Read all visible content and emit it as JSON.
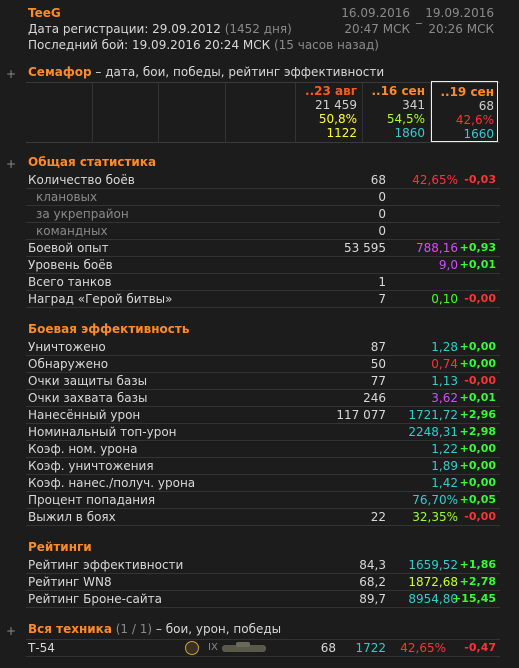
{
  "header": {
    "name": "TeeG",
    "registration": "Дата регистрации: 29.09.2012",
    "registration_days": "(1452 дня)",
    "last_battle": "Последний бой: 19.09.2016 20:24 МСК",
    "last_battle_ago": "(15 часов назад)",
    "date_from": "16.09.2016",
    "time_from": "20:47 МСК",
    "separator": "_",
    "date_to": "19.09.2016",
    "time_to": "20:26 МСК"
  },
  "semafor": {
    "toggle": "+",
    "title": "Семафор",
    "description": "– дата, бои, победы, рейтинг эффективности",
    "columns": [
      {
        "date": "..23 авг",
        "battles": "21 459",
        "wins": "50,8%",
        "rating": "1122",
        "date_color": "#ff5a1a",
        "wins_color": "#ffff33",
        "rating_color": "#ffff33"
      },
      {
        "date": "..16 сен",
        "battles": "341",
        "wins": "54,5%",
        "rating": "1860",
        "date_color": "#ff8a2a",
        "wins_color": "#a6ff33",
        "rating_color": "#33cccc"
      },
      {
        "date": "..19 сен",
        "battles": "68",
        "wins": "42,6%",
        "rating": "1660",
        "date_color": "#ff8a2a",
        "wins_color": "#ff3333",
        "rating_color": "#33cccc",
        "highlight": true
      }
    ]
  },
  "sections": [
    {
      "toggle": "+",
      "title": "Общая статистика",
      "rows": [
        {
          "label": "Количество боёв",
          "value": "68",
          "avg": "42,65%",
          "delta": "-0,03",
          "avg_color": "#ff3333",
          "delta_color": "#ff3333"
        },
        {
          "label": "клановых",
          "value": "0",
          "sub": true
        },
        {
          "label": "за укрепрайон",
          "value": "0",
          "sub": true
        },
        {
          "label": "командных",
          "value": "0",
          "sub": true
        },
        {
          "label": "Боевой опыт",
          "value": "53 595",
          "avg": "788,16",
          "delta": "+0,93",
          "avg_color": "#d24dff",
          "delta_color": "#33ff33"
        },
        {
          "label": "Уровень боёв",
          "avg": "9,0",
          "delta": "+0,01",
          "avg_color": "#d24dff",
          "delta_color": "#33ff33"
        },
        {
          "label": "Всего танков",
          "value": "1"
        },
        {
          "label": "Наград «Герой битвы»",
          "value": "7",
          "avg": "0,10",
          "delta": "-0,00",
          "avg_color": "#44ff22",
          "delta_color": "#ff3333"
        }
      ]
    },
    {
      "title": "Боевая эффективность",
      "rows": [
        {
          "label": "Уничтожено",
          "value": "87",
          "avg": "1,28",
          "delta": "+0,00",
          "avg_color": "#33cccc",
          "delta_color": "#33ff33"
        },
        {
          "label": "Обнаружено",
          "value": "50",
          "avg": "0,74",
          "delta": "+0,00",
          "avg_color": "#ff3333",
          "delta_color": "#33ff33"
        },
        {
          "label": "Очки защиты базы",
          "value": "77",
          "avg": "1,13",
          "delta": "-0,00",
          "avg_color": "#33cccc",
          "delta_color": "#ff3333"
        },
        {
          "label": "Очки захвата базы",
          "value": "246",
          "avg": "3,62",
          "delta": "+0,01",
          "avg_color": "#d24dff",
          "delta_color": "#33ff33"
        },
        {
          "label": "Нанесённый урон",
          "value": "117 077",
          "avg": "1721,72",
          "delta": "+2,96",
          "avg_color": "#33cccc",
          "delta_color": "#33ff33"
        },
        {
          "label": "Номинальный топ-урон",
          "avg": "2248,31",
          "delta": "+2,98",
          "avg_color": "#33cccc",
          "delta_color": "#33ff33"
        },
        {
          "label": "Коэф. ном. урона",
          "avg": "1,22",
          "delta": "+0,00",
          "avg_color": "#33cccc",
          "delta_color": "#33ff33"
        },
        {
          "label": "Коэф. уничтожения",
          "avg": "1,89",
          "delta": "+0,00",
          "avg_color": "#33cccc",
          "delta_color": "#33ff33"
        },
        {
          "label": "Коэф. нанес./получ. урона",
          "avg": "1,42",
          "delta": "+0,00",
          "avg_color": "#33cccc",
          "delta_color": "#33ff33"
        },
        {
          "label": "Процент попадания",
          "avg": "76,70%",
          "delta": "+0,05",
          "avg_color": "#33cccc",
          "delta_color": "#33ff33"
        },
        {
          "label": "Выжил в боях",
          "value": "22",
          "avg": "32,35%",
          "delta": "-0,00",
          "avg_color": "#99ff33",
          "delta_color": "#ff3333"
        }
      ]
    },
    {
      "title": "Рейтинги",
      "rows": [
        {
          "label": "Рейтинг эффективности",
          "value": "84,3",
          "avg": "1659,52",
          "delta": "+1,86",
          "avg_color": "#33cccc",
          "delta_color": "#33ff33"
        },
        {
          "label": "Рейтинг WN8",
          "value": "68,2",
          "avg": "1872,68",
          "delta": "+2,78",
          "avg_color": "#ccff33",
          "delta_color": "#33ff33"
        },
        {
          "label": "Рейтинг Броне-сайта",
          "value": "89,7",
          "avg": "8954,80",
          "delta": "+15,45",
          "avg_color": "#33cccc",
          "delta_color": "#33ff33"
        }
      ]
    }
  ],
  "vehicles": {
    "toggle": "+",
    "title": "Вся техника",
    "count": "(1 / 1)",
    "description": "– бои, урон, победы",
    "rows": [
      {
        "name": "Т-54",
        "tier": "IX",
        "battles": "68",
        "damage": "1722",
        "winrate": "42,65%",
        "delta": "-0,47",
        "damage_color": "#33cccc",
        "winrate_color": "#ff3333",
        "delta_color": "#ff3333"
      }
    ]
  }
}
